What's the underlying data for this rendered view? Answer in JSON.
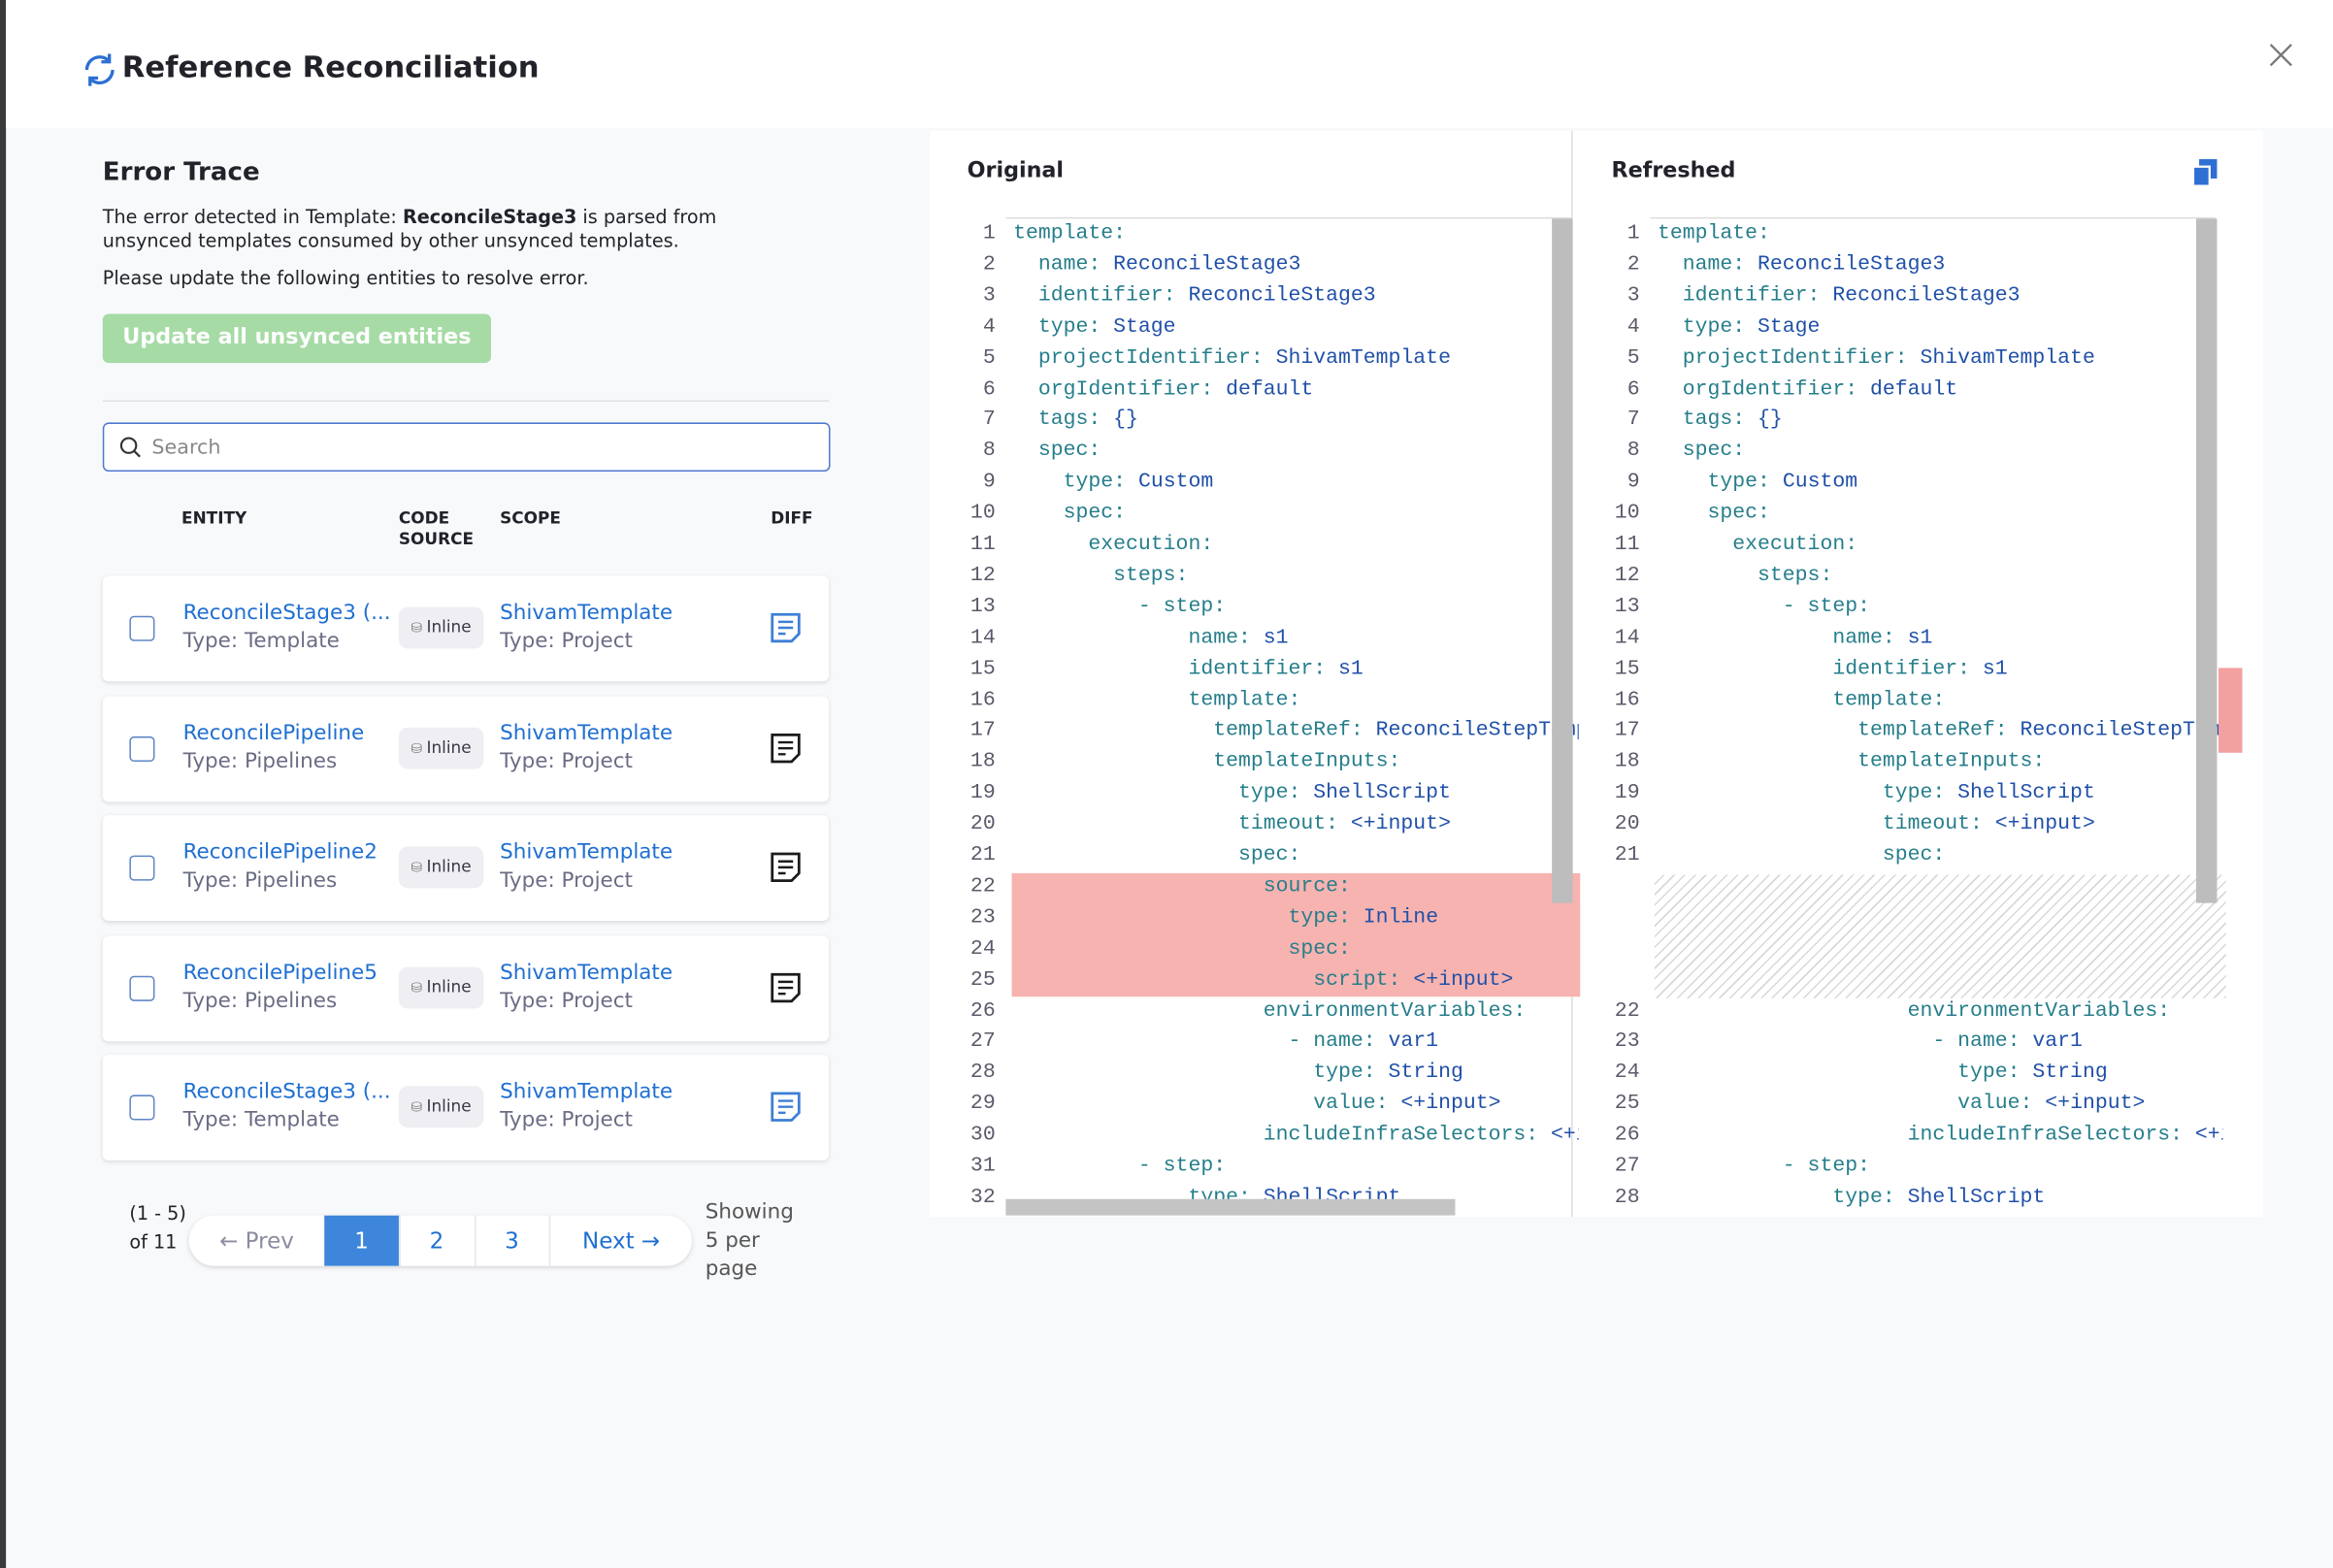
{
  "header": {
    "title": "Reference Reconciliation"
  },
  "error_trace": {
    "title": "Error Trace",
    "text_before": "The error detected in Template: ",
    "entity": "ReconcileStage3",
    "text_after": " is parsed from unsynced templates consumed by other unsynced templates.",
    "instruction": "Please update the following entities to resolve error.",
    "button": "Update all unsynced entities",
    "search_placeholder": "Search"
  },
  "table": {
    "headers": {
      "entity": "ENTITY",
      "code_source": "CODE SOURCE",
      "scope": "SCOPE",
      "diff": "DIFF"
    },
    "rows": [
      {
        "name": "ReconcileStage3 (...",
        "type": "Type: Template",
        "source": "Inline",
        "scope": "ShivamTemplate",
        "scope_type": "Type: Project",
        "diff_color": "#3d7fd6"
      },
      {
        "name": "ReconcilePipeline",
        "type": "Type: Pipelines",
        "source": "Inline",
        "scope": "ShivamTemplate",
        "scope_type": "Type: Project",
        "diff_color": "#1b1b1b"
      },
      {
        "name": "ReconcilePipeline2",
        "type": "Type: Pipelines",
        "source": "Inline",
        "scope": "ShivamTemplate",
        "scope_type": "Type: Project",
        "diff_color": "#1b1b1b"
      },
      {
        "name": "ReconcilePipeline5",
        "type": "Type: Pipelines",
        "source": "Inline",
        "scope": "ShivamTemplate",
        "scope_type": "Type: Project",
        "diff_color": "#1b1b1b"
      },
      {
        "name": "ReconcileStage3 (...",
        "type": "Type: Template",
        "source": "Inline",
        "scope": "ShivamTemplate",
        "scope_type": "Type: Project",
        "diff_color": "#3d7fd6"
      }
    ]
  },
  "pagination": {
    "range": "(1 - 5) of 11",
    "prev": "← Prev",
    "pages": [
      "1",
      "2",
      "3"
    ],
    "next": "Next →",
    "per_page": "Showing 5 per page"
  },
  "diff": {
    "original": {
      "title": "Original",
      "blocks": [
        {
          "numbers": [
            1,
            2,
            3,
            4,
            5,
            6,
            7,
            8,
            9,
            10,
            11,
            12,
            13,
            14,
            15,
            16,
            17,
            18,
            19,
            20,
            21
          ],
          "lines": [
            [
              "template:"
            ],
            [
              "  name:",
              " ReconcileStage3"
            ],
            [
              "  identifier:",
              " ReconcileStage3"
            ],
            [
              "  type:",
              " Stage"
            ],
            [
              "  projectIdentifier:",
              " ShivamTemplate"
            ],
            [
              "  orgIdentifier:",
              " default"
            ],
            [
              "  tags:",
              " {}"
            ],
            [
              "  spec:"
            ],
            [
              "    type:",
              " Custom"
            ],
            [
              "    spec:"
            ],
            [
              "      execution:"
            ],
            [
              "        steps:"
            ],
            [
              "          - step:"
            ],
            [
              "              name:",
              " s1"
            ],
            [
              "              identifier:",
              " s1"
            ],
            [
              "              template:"
            ],
            [
              "                templateRef:",
              " ReconcileStepTempl"
            ],
            [
              "                templateInputs:"
            ],
            [
              "                  type:",
              " ShellScript"
            ],
            [
              "                  timeout:",
              " <+input>"
            ],
            [
              "                  spec:"
            ]
          ]
        },
        {
          "removed": true,
          "numbers": [
            22,
            23,
            24,
            25
          ],
          "lines": [
            [
              "                    source:"
            ],
            [
              "                      type:",
              " Inline"
            ],
            [
              "                      spec:"
            ],
            [
              "                        script:",
              " <+input>"
            ]
          ]
        },
        {
          "numbers": [
            26,
            27,
            28,
            29,
            30,
            31,
            32
          ],
          "lines": [
            [
              "                    environmentVariables:"
            ],
            [
              "                      - name:",
              " var1"
            ],
            [
              "                        type:",
              " String"
            ],
            [
              "                        value:",
              " <+input>"
            ],
            [
              "                    includeInfraSelectors:",
              " <+in"
            ],
            [
              "          - step:"
            ],
            [
              "              type:",
              " ShellScript"
            ]
          ]
        }
      ]
    },
    "refreshed": {
      "title": "Refreshed",
      "blocks": [
        {
          "numbers": [
            1,
            2,
            3,
            4,
            5,
            6,
            7,
            8,
            9,
            10,
            11,
            12,
            13,
            14,
            15,
            16,
            17,
            18,
            19,
            20,
            21
          ],
          "lines": [
            [
              "template:"
            ],
            [
              "  name:",
              " ReconcileStage3"
            ],
            [
              "  identifier:",
              " ReconcileStage3"
            ],
            [
              "  type:",
              " Stage"
            ],
            [
              "  projectIdentifier:",
              " ShivamTemplate"
            ],
            [
              "  orgIdentifier:",
              " default"
            ],
            [
              "  tags:",
              " {}"
            ],
            [
              "  spec:"
            ],
            [
              "    type:",
              " Custom"
            ],
            [
              "    spec:"
            ],
            [
              "      execution:"
            ],
            [
              "        steps:"
            ],
            [
              "          - step:"
            ],
            [
              "              name:",
              " s1"
            ],
            [
              "              identifier:",
              " s1"
            ],
            [
              "              template:"
            ],
            [
              "                templateRef:",
              " ReconcileStepTempl"
            ],
            [
              "                templateInputs:"
            ],
            [
              "                  type:",
              " ShellScript"
            ],
            [
              "                  timeout:",
              " <+input>"
            ],
            [
              "                  spec:"
            ]
          ]
        },
        {
          "filler": true
        },
        {
          "numbers": [
            22,
            23,
            24,
            25,
            26,
            27,
            28
          ],
          "lines": [
            [
              "                    environmentVariables:"
            ],
            [
              "                      - name:",
              " var1"
            ],
            [
              "                        type:",
              " String"
            ],
            [
              "                        value:",
              " <+input>"
            ],
            [
              "                    includeInfraSelectors:",
              " <+in"
            ],
            [
              "          - step:"
            ],
            [
              "              type:",
              " ShellScript"
            ]
          ]
        }
      ]
    }
  }
}
